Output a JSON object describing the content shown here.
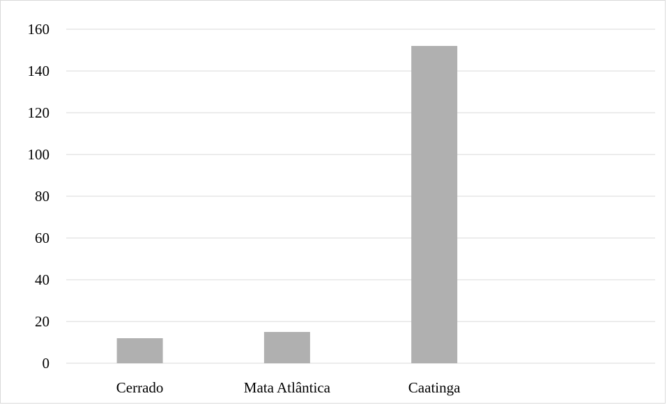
{
  "chart_data": {
    "type": "bar",
    "title": "",
    "xlabel": "",
    "ylabel": "",
    "categories": [
      "Cerrado",
      "Mata Atlântica",
      "Caatinga",
      ""
    ],
    "values": [
      12,
      15,
      152,
      null
    ],
    "ylim": [
      0,
      160
    ],
    "yticks": [
      "0",
      "20",
      "40",
      "60",
      "80",
      "100",
      "120",
      "140",
      "160"
    ],
    "grid": true,
    "legend": "none",
    "bar_color": "#b0b0b0",
    "grid_color": "#d9d9d9"
  }
}
